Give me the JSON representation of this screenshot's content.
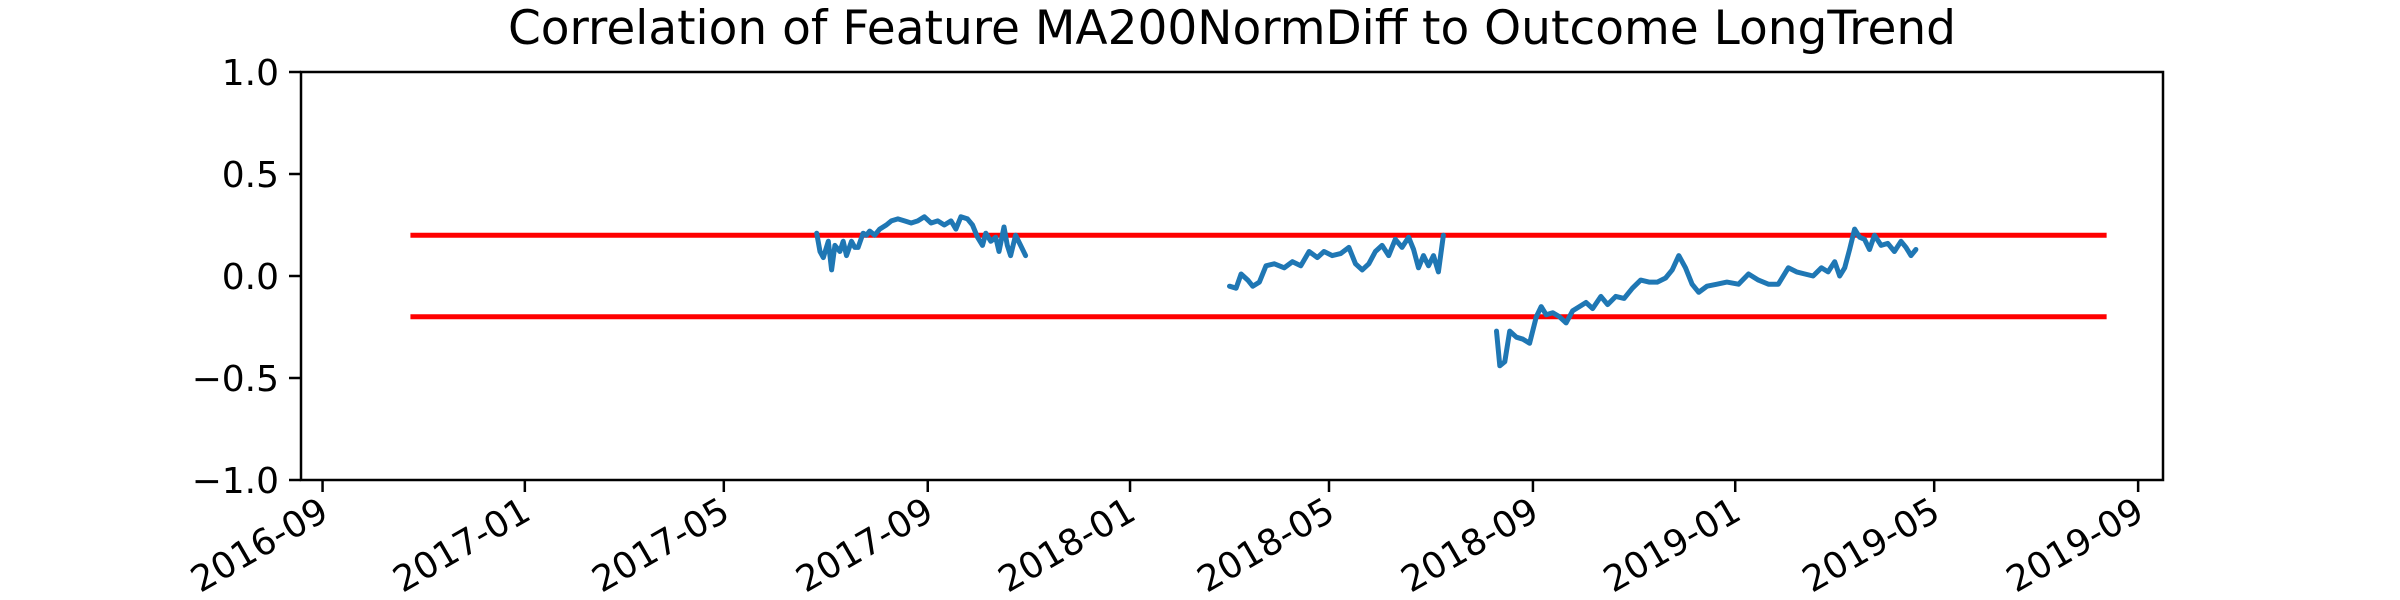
{
  "chart_data": {
    "type": "line",
    "title": "Correlation of Feature MA200NormDiff to Outcome LongTrend",
    "xlabel": "",
    "ylabel": "",
    "xlim": [
      "2016-08-19",
      "2019-09-16"
    ],
    "ylim": [
      -1.0,
      1.0
    ],
    "grid": false,
    "x_ticks": [
      "2016-09",
      "2017-01",
      "2017-05",
      "2017-09",
      "2018-01",
      "2018-05",
      "2018-09",
      "2019-01",
      "2019-05",
      "2019-09"
    ],
    "y_ticks": [
      {
        "value": 1.0,
        "label": "1.0"
      },
      {
        "value": 0.5,
        "label": "0.5"
      },
      {
        "value": 0.0,
        "label": "0.0"
      },
      {
        "value": -0.5,
        "label": "−0.5"
      },
      {
        "value": -1.0,
        "label": "−1.0"
      }
    ],
    "threshold_lines": [
      {
        "y": 0.2,
        "x_start": "2016-10-24",
        "x_end": "2019-08-13",
        "color": "#ff0000"
      },
      {
        "y": -0.2,
        "x_start": "2016-10-24",
        "x_end": "2019-08-13",
        "color": "#ff0000"
      }
    ],
    "series_color": "#1f77b4",
    "series": [
      {
        "segment": 1,
        "points": [
          [
            "2017-06-26",
            0.21
          ],
          [
            "2017-06-28",
            0.12
          ],
          [
            "2017-06-30",
            0.09
          ],
          [
            "2017-07-03",
            0.17
          ],
          [
            "2017-07-05",
            0.03
          ],
          [
            "2017-07-07",
            0.15
          ],
          [
            "2017-07-10",
            0.12
          ],
          [
            "2017-07-12",
            0.17
          ],
          [
            "2017-07-14",
            0.1
          ],
          [
            "2017-07-17",
            0.17
          ],
          [
            "2017-07-19",
            0.14
          ],
          [
            "2017-07-21",
            0.14
          ],
          [
            "2017-07-24",
            0.21
          ],
          [
            "2017-07-26",
            0.2
          ],
          [
            "2017-07-28",
            0.22
          ],
          [
            "2017-07-31",
            0.2
          ],
          [
            "2017-08-03",
            0.23
          ],
          [
            "2017-08-07",
            0.25
          ],
          [
            "2017-08-10",
            0.27
          ],
          [
            "2017-08-14",
            0.28
          ],
          [
            "2017-08-18",
            0.27
          ],
          [
            "2017-08-22",
            0.26
          ],
          [
            "2017-08-26",
            0.27
          ],
          [
            "2017-08-30",
            0.29
          ],
          [
            "2017-09-03",
            0.26
          ],
          [
            "2017-09-07",
            0.27
          ],
          [
            "2017-09-11",
            0.25
          ],
          [
            "2017-09-15",
            0.27
          ],
          [
            "2017-09-18",
            0.23
          ],
          [
            "2017-09-21",
            0.29
          ],
          [
            "2017-09-25",
            0.28
          ],
          [
            "2017-09-28",
            0.25
          ],
          [
            "2017-10-01",
            0.19
          ],
          [
            "2017-10-04",
            0.15
          ],
          [
            "2017-10-06",
            0.21
          ],
          [
            "2017-10-09",
            0.17
          ],
          [
            "2017-10-12",
            0.19
          ],
          [
            "2017-10-14",
            0.12
          ],
          [
            "2017-10-17",
            0.24
          ],
          [
            "2017-10-19",
            0.15
          ],
          [
            "2017-10-21",
            0.1
          ],
          [
            "2017-10-24",
            0.2
          ],
          [
            "2017-10-27",
            0.15
          ],
          [
            "2017-10-30",
            0.1
          ]
        ]
      },
      {
        "segment": 2,
        "points": [
          [
            "2018-03-02",
            -0.05
          ],
          [
            "2018-03-06",
            -0.06
          ],
          [
            "2018-03-09",
            0.01
          ],
          [
            "2018-03-13",
            -0.02
          ],
          [
            "2018-03-16",
            -0.05
          ],
          [
            "2018-03-20",
            -0.03
          ],
          [
            "2018-03-24",
            0.05
          ],
          [
            "2018-03-29",
            0.06
          ],
          [
            "2018-04-04",
            0.04
          ],
          [
            "2018-04-09",
            0.07
          ],
          [
            "2018-04-14",
            0.05
          ],
          [
            "2018-04-19",
            0.12
          ],
          [
            "2018-04-24",
            0.09
          ],
          [
            "2018-04-28",
            0.12
          ],
          [
            "2018-05-03",
            0.1
          ],
          [
            "2018-05-08",
            0.11
          ],
          [
            "2018-05-13",
            0.14
          ],
          [
            "2018-05-17",
            0.06
          ],
          [
            "2018-05-21",
            0.03
          ],
          [
            "2018-05-25",
            0.06
          ],
          [
            "2018-05-29",
            0.12
          ],
          [
            "2018-06-02",
            0.15
          ],
          [
            "2018-06-06",
            0.1
          ],
          [
            "2018-06-10",
            0.18
          ],
          [
            "2018-06-14",
            0.14
          ],
          [
            "2018-06-18",
            0.19
          ],
          [
            "2018-06-21",
            0.13
          ],
          [
            "2018-06-24",
            0.04
          ],
          [
            "2018-06-27",
            0.1
          ],
          [
            "2018-06-30",
            0.05
          ],
          [
            "2018-07-03",
            0.1
          ],
          [
            "2018-07-06",
            0.02
          ],
          [
            "2018-07-09",
            0.2
          ]
        ]
      },
      {
        "segment": 3,
        "points": [
          [
            "2018-08-10",
            -0.27
          ],
          [
            "2018-08-12",
            -0.44
          ],
          [
            "2018-08-15",
            -0.42
          ],
          [
            "2018-08-18",
            -0.27
          ],
          [
            "2018-08-22",
            -0.3
          ],
          [
            "2018-08-26",
            -0.31
          ],
          [
            "2018-08-30",
            -0.33
          ],
          [
            "2018-09-03",
            -0.2
          ],
          [
            "2018-09-06",
            -0.15
          ],
          [
            "2018-09-09",
            -0.19
          ],
          [
            "2018-09-13",
            -0.18
          ],
          [
            "2018-09-17",
            -0.2
          ],
          [
            "2018-09-21",
            -0.23
          ],
          [
            "2018-09-25",
            -0.17
          ],
          [
            "2018-09-29",
            -0.15
          ],
          [
            "2018-10-03",
            -0.13
          ],
          [
            "2018-10-07",
            -0.16
          ],
          [
            "2018-10-12",
            -0.1
          ],
          [
            "2018-10-16",
            -0.14
          ],
          [
            "2018-10-21",
            -0.1
          ],
          [
            "2018-10-26",
            -0.11
          ],
          [
            "2018-10-31",
            -0.06
          ],
          [
            "2018-11-05",
            -0.02
          ],
          [
            "2018-11-10",
            -0.03
          ],
          [
            "2018-11-15",
            -0.03
          ],
          [
            "2018-11-20",
            -0.01
          ],
          [
            "2018-11-24",
            0.03
          ],
          [
            "2018-11-28",
            0.1
          ],
          [
            "2018-12-02",
            0.04
          ],
          [
            "2018-12-06",
            -0.04
          ],
          [
            "2018-12-10",
            -0.08
          ],
          [
            "2018-12-15",
            -0.05
          ],
          [
            "2018-12-21",
            -0.04
          ],
          [
            "2018-12-27",
            -0.03
          ],
          [
            "2019-01-03",
            -0.04
          ],
          [
            "2019-01-09",
            0.01
          ],
          [
            "2019-01-15",
            -0.02
          ],
          [
            "2019-01-21",
            -0.04
          ],
          [
            "2019-01-27",
            -0.04
          ],
          [
            "2019-02-02",
            0.04
          ],
          [
            "2019-02-07",
            0.02
          ],
          [
            "2019-02-12",
            0.01
          ],
          [
            "2019-02-17",
            0.0
          ],
          [
            "2019-02-22",
            0.04
          ],
          [
            "2019-02-26",
            0.02
          ],
          [
            "2019-03-02",
            0.07
          ],
          [
            "2019-03-05",
            0.0
          ],
          [
            "2019-03-08",
            0.04
          ],
          [
            "2019-03-11",
            0.13
          ],
          [
            "2019-03-14",
            0.23
          ],
          [
            "2019-03-17",
            0.19
          ],
          [
            "2019-03-20",
            0.18
          ],
          [
            "2019-03-23",
            0.13
          ],
          [
            "2019-03-26",
            0.2
          ],
          [
            "2019-03-30",
            0.15
          ],
          [
            "2019-04-03",
            0.16
          ],
          [
            "2019-04-07",
            0.12
          ],
          [
            "2019-04-11",
            0.17
          ],
          [
            "2019-04-14",
            0.14
          ],
          [
            "2019-04-17",
            0.1
          ],
          [
            "2019-04-20",
            0.13
          ]
        ]
      }
    ]
  }
}
